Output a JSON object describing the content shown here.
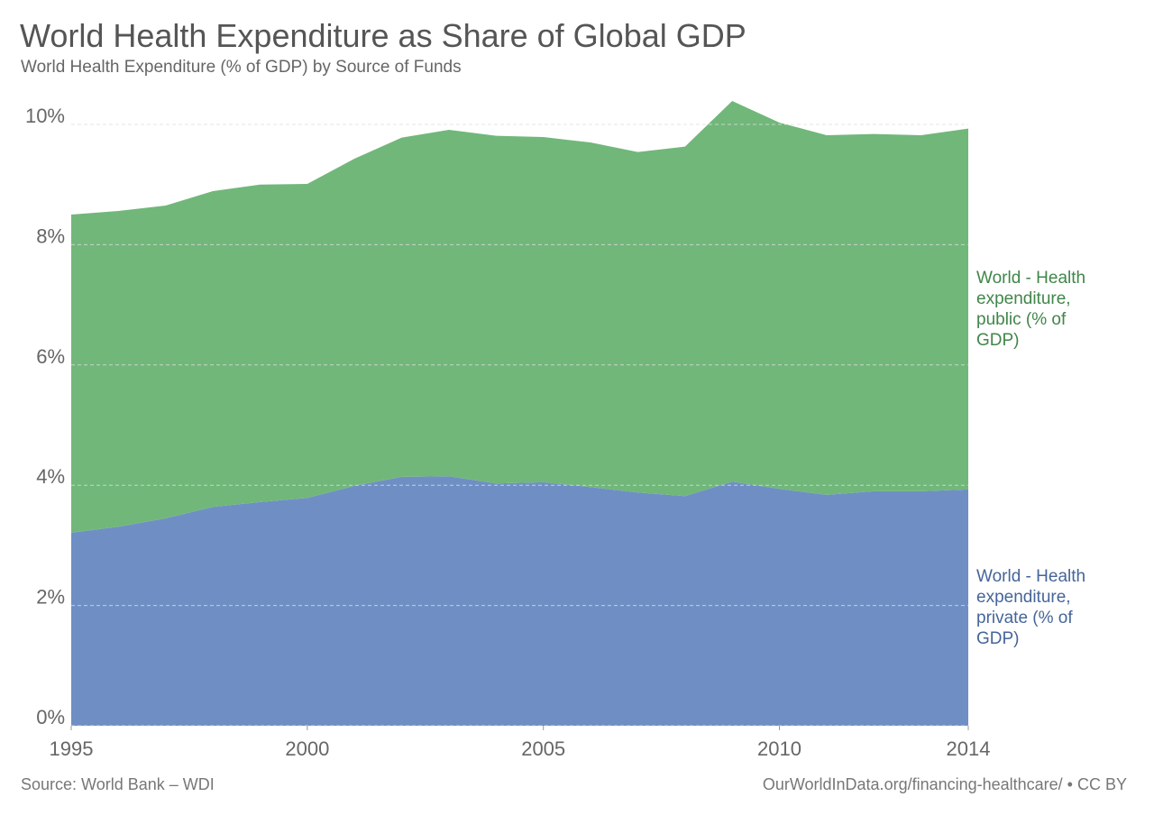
{
  "chart_data": {
    "type": "stacked_area",
    "title": "World Health Expenditure as Share of Global GDP",
    "subtitle": "World Health Expenditure (% of GDP) by Source of Funds",
    "source": "Source: World Bank – WDI",
    "credit": "OurWorldInData.org/financing-healthcare/ • CC BY",
    "x": [
      1995,
      1996,
      1997,
      1998,
      1999,
      2000,
      2001,
      2002,
      2003,
      2004,
      2005,
      2006,
      2007,
      2008,
      2009,
      2010,
      2011,
      2012,
      2013,
      2014
    ],
    "series": [
      {
        "name": "World - Health expenditure, private (% of GDP)",
        "color": "#6f8fc4",
        "values": [
          3.21,
          3.31,
          3.45,
          3.64,
          3.72,
          3.79,
          3.99,
          4.14,
          4.15,
          4.03,
          4.05,
          3.97,
          3.88,
          3.82,
          4.06,
          3.94,
          3.84,
          3.9,
          3.9,
          3.93
        ]
      },
      {
        "name": "World - Health expenditure, public (% of GDP)",
        "color": "#71b77a",
        "values": [
          5.29,
          5.25,
          5.2,
          5.25,
          5.28,
          5.22,
          5.44,
          5.64,
          5.76,
          5.78,
          5.74,
          5.73,
          5.66,
          5.81,
          6.33,
          6.09,
          5.98,
          5.94,
          5.92,
          6.0
        ]
      }
    ],
    "xlim": [
      1995,
      2014
    ],
    "xticks": [
      1995,
      2000,
      2005,
      2010,
      2014
    ],
    "ylim": [
      0,
      10.4
    ],
    "yticks": [
      {
        "value": 0,
        "label": "0%"
      },
      {
        "value": 2,
        "label": "2%"
      },
      {
        "value": 4,
        "label": "4%"
      },
      {
        "value": 6,
        "label": "6%"
      },
      {
        "value": 8,
        "label": "8%"
      },
      {
        "value": 10,
        "label": "10%"
      }
    ],
    "grid": true
  }
}
